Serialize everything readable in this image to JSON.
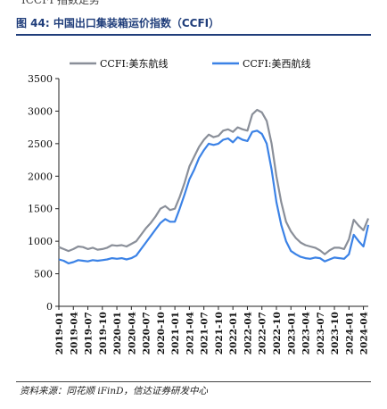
{
  "figure": {
    "top_text": "ICCFI 指数走势",
    "title": "图 44:  中国出口集装箱运价指数（CCFI）",
    "source": "资料来源：同花顺 iFinD，信达证券研发中心"
  },
  "colors": {
    "title": "#1f3d7a",
    "series_east": "#8a8f99",
    "series_west": "#3b82e6"
  },
  "chart_data": {
    "type": "line",
    "title": "",
    "xlabel": "",
    "ylabel": "",
    "ylim": [
      0,
      3500
    ],
    "yticks": [
      0,
      500,
      1000,
      1500,
      2000,
      2500,
      3000,
      3500
    ],
    "xtick_labels": [
      "2019-01",
      "2019-04",
      "2019-07",
      "2019-10",
      "2020-01",
      "2020-04",
      "2020-07",
      "2020-10",
      "2021-01",
      "2021-04",
      "2021-07",
      "2021-10",
      "2022-01",
      "2022-04",
      "2022-07",
      "2022-10",
      "2023-01",
      "2023-04",
      "2023-07",
      "2023-10",
      "2024-01",
      "2024-04"
    ],
    "legend_position": "top",
    "grid": false,
    "x": [
      "2019-01",
      "2019-02",
      "2019-03",
      "2019-04",
      "2019-05",
      "2019-06",
      "2019-07",
      "2019-08",
      "2019-09",
      "2019-10",
      "2019-11",
      "2019-12",
      "2020-01",
      "2020-02",
      "2020-03",
      "2020-04",
      "2020-05",
      "2020-06",
      "2020-07",
      "2020-08",
      "2020-09",
      "2020-10",
      "2020-11",
      "2020-12",
      "2021-01",
      "2021-02",
      "2021-03",
      "2021-04",
      "2021-05",
      "2021-06",
      "2021-07",
      "2021-08",
      "2021-09",
      "2021-10",
      "2021-11",
      "2021-12",
      "2022-01",
      "2022-02",
      "2022-03",
      "2022-04",
      "2022-05",
      "2022-06",
      "2022-07",
      "2022-08",
      "2022-09",
      "2022-10",
      "2022-11",
      "2022-12",
      "2023-01",
      "2023-02",
      "2023-03",
      "2023-04",
      "2023-05",
      "2023-06",
      "2023-07",
      "2023-08",
      "2023-09",
      "2023-10",
      "2023-11",
      "2023-12",
      "2024-01",
      "2024-02",
      "2024-03",
      "2024-04",
      "2024-05"
    ],
    "series": [
      {
        "name": "CCFI:美东航线",
        "values": [
          910,
          880,
          850,
          880,
          920,
          910,
          880,
          900,
          870,
          880,
          900,
          940,
          930,
          940,
          920,
          960,
          1000,
          1100,
          1200,
          1280,
          1380,
          1500,
          1540,
          1480,
          1500,
          1680,
          1900,
          2150,
          2300,
          2450,
          2560,
          2640,
          2600,
          2620,
          2700,
          2720,
          2680,
          2750,
          2720,
          2700,
          2950,
          3020,
          2980,
          2850,
          2500,
          2000,
          1600,
          1300,
          1150,
          1050,
          980,
          940,
          920,
          900,
          860,
          800,
          860,
          900,
          900,
          880,
          1030,
          1330,
          1240,
          1170,
          1350
        ]
      },
      {
        "name": "CCFI:美西航线",
        "values": [
          720,
          700,
          660,
          680,
          710,
          700,
          690,
          710,
          700,
          710,
          720,
          740,
          730,
          740,
          720,
          740,
          780,
          880,
          980,
          1080,
          1180,
          1280,
          1340,
          1300,
          1300,
          1500,
          1720,
          1950,
          2100,
          2280,
          2400,
          2500,
          2480,
          2500,
          2560,
          2580,
          2520,
          2600,
          2560,
          2540,
          2680,
          2700,
          2650,
          2500,
          2100,
          1600,
          1250,
          1000,
          850,
          800,
          760,
          740,
          730,
          750,
          740,
          690,
          720,
          750,
          740,
          730,
          800,
          1100,
          1000,
          920,
          1250
        ]
      }
    ]
  }
}
